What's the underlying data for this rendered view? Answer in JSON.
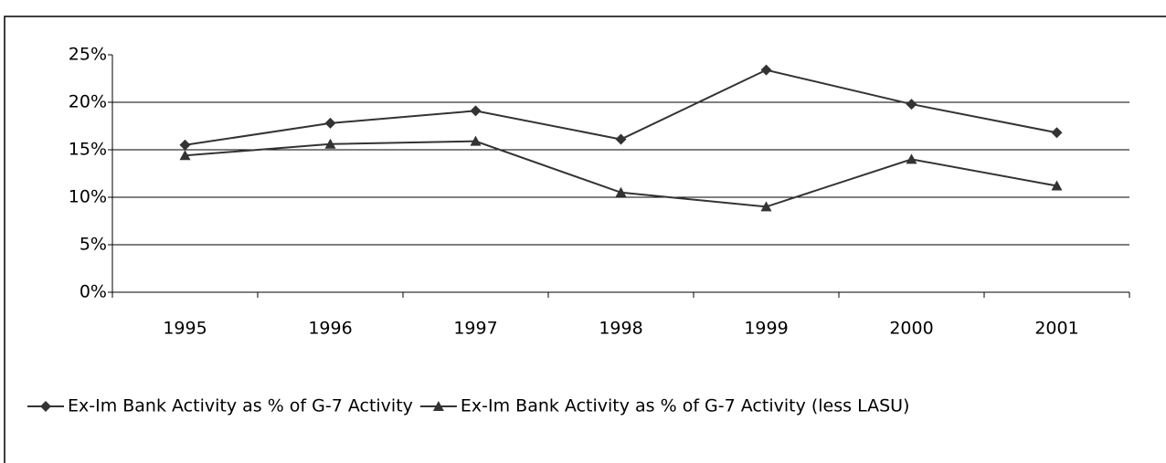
{
  "chart_data": {
    "type": "line",
    "categories": [
      "1995",
      "1996",
      "1997",
      "1998",
      "1999",
      "2000",
      "2001"
    ],
    "series": [
      {
        "name": "Ex-Im Bank Activity as % of G-7 Activity",
        "color": "#333333",
        "marker": "diamond",
        "values": [
          15.5,
          17.8,
          19.1,
          16.1,
          23.4,
          19.8,
          16.8
        ]
      },
      {
        "name": "Ex-Im Bank Activity as % of G-7 Activity (less LASU)",
        "color": "#333333",
        "marker": "triangle",
        "values": [
          14.4,
          15.6,
          15.9,
          10.5,
          9.0,
          14.0,
          11.2
        ]
      }
    ],
    "ylim": [
      0,
      25
    ],
    "yticks": [
      {
        "value": 0,
        "label": "0%"
      },
      {
        "value": 5,
        "label": "5%"
      },
      {
        "value": 10,
        "label": "10%"
      },
      {
        "value": 15,
        "label": "15%"
      },
      {
        "value": 20,
        "label": "20%"
      },
      {
        "value": 25,
        "label": "25%"
      }
    ],
    "grid": true,
    "legend": "bottom"
  }
}
